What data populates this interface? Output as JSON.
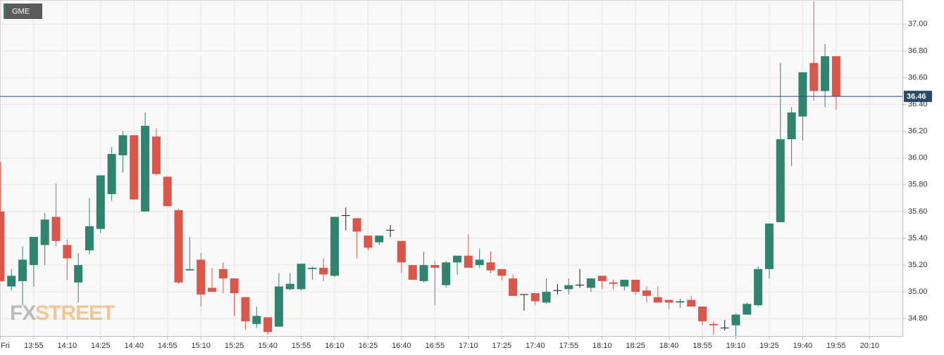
{
  "logo": {
    "fx": "FX",
    "street": "STREET"
  },
  "chart_data": {
    "type": "candlestick",
    "legend": "GME",
    "categories": [
      "Fri",
      null,
      null,
      "13:55",
      null,
      null,
      "14:10",
      null,
      null,
      "14:25",
      null,
      null,
      "14:40",
      null,
      null,
      "14:55",
      null,
      null,
      "15:10",
      null,
      null,
      "15:25",
      null,
      null,
      "15:40",
      null,
      null,
      "15:55",
      null,
      null,
      "16:10",
      null,
      null,
      "16:25",
      null,
      null,
      "16:40",
      null,
      null,
      "16:55",
      null,
      null,
      "17:10",
      null,
      null,
      "17:25",
      null,
      null,
      "17:40",
      null,
      null,
      "17:55",
      null,
      null,
      "18:10",
      null,
      null,
      "18:25",
      null,
      null,
      "18:40",
      null,
      null,
      "18:55",
      null,
      null,
      "19:10",
      null,
      null,
      "19:25",
      null,
      null,
      "19:40",
      null,
      null,
      "19:55",
      null,
      null,
      "20:10"
    ],
    "series": [
      {
        "name": "GME",
        "up_color": "#2f8470",
        "down_color": "#d9574a",
        "flat_color": "#1a1a1a",
        "open": [
          35.6,
          35.04,
          35.08,
          35.2,
          35.35,
          35.56,
          35.35,
          35.07,
          35.31,
          35.47,
          35.73,
          36.02,
          36.17,
          35.6,
          36.16,
          35.86,
          35.61,
          35.16,
          35.24,
          35.03,
          35.17,
          35.1,
          34.96,
          34.76,
          34.81,
          34.74,
          35.02,
          35.02,
          35.17,
          35.18,
          35.12,
          35.57,
          35.55,
          35.42,
          35.37,
          35.46,
          35.38,
          35.2,
          35.08,
          35.2,
          35.05,
          35.22,
          35.27,
          35.2,
          35.22,
          35.17,
          35.1,
          34.98,
          34.99,
          34.92,
          35.01,
          35.02,
          35.05,
          35.03,
          35.12,
          35.07,
          35.04,
          35.09,
          35.01,
          34.96,
          34.94,
          34.92,
          34.94,
          34.89,
          34.76,
          34.73,
          34.75,
          34.83,
          34.9,
          35.17,
          35.52,
          36.14,
          36.31,
          36.71,
          36.5,
          36.76,
          null,
          null,
          null
        ],
        "high": [
          35.97,
          35.17,
          35.34,
          35.41,
          35.59,
          35.81,
          35.39,
          35.29,
          35.7,
          35.87,
          36.08,
          36.2,
          36.17,
          36.34,
          36.22,
          35.86,
          35.62,
          35.41,
          35.29,
          35.18,
          35.22,
          35.1,
          34.96,
          34.89,
          34.81,
          35.14,
          35.14,
          35.21,
          35.19,
          35.25,
          35.56,
          35.63,
          35.55,
          35.42,
          35.42,
          35.5,
          35.38,
          35.2,
          35.3,
          35.23,
          35.23,
          35.27,
          35.43,
          35.32,
          35.3,
          35.17,
          35.13,
          34.98,
          34.99,
          35.1,
          35.06,
          35.1,
          35.17,
          35.1,
          35.12,
          35.09,
          35.09,
          35.09,
          35.04,
          35.04,
          34.94,
          34.95,
          34.97,
          34.89,
          34.78,
          34.79,
          34.84,
          34.92,
          35.19,
          35.51,
          36.71,
          36.38,
          36.64,
          37.17,
          36.85,
          36.76,
          null,
          null,
          null
        ],
        "low": [
          35.08,
          35.01,
          34.9,
          35.04,
          35.2,
          35.34,
          35.09,
          34.92,
          35.28,
          35.44,
          35.68,
          35.89,
          35.69,
          35.6,
          35.87,
          35.64,
          35.06,
          35.16,
          34.89,
          35.0,
          34.99,
          34.82,
          34.72,
          34.73,
          34.68,
          34.74,
          35.01,
          35.01,
          35.09,
          35.08,
          35.11,
          35.46,
          35.25,
          35.31,
          35.35,
          35.41,
          35.14,
          35.09,
          35.07,
          34.9,
          35.03,
          35.13,
          35.18,
          35.18,
          35.14,
          35.09,
          34.97,
          34.86,
          34.9,
          34.91,
          34.98,
          34.98,
          35.03,
          35.0,
          35.02,
          35.02,
          35.01,
          34.98,
          34.92,
          34.92,
          34.87,
          34.88,
          34.89,
          34.75,
          34.68,
          34.71,
          34.67,
          34.83,
          34.89,
          35.1,
          35.52,
          35.94,
          36.13,
          36.43,
          36.38,
          36.36,
          null,
          null,
          null
        ],
        "close": [
          35.08,
          35.12,
          35.24,
          35.41,
          35.54,
          35.38,
          35.25,
          35.2,
          35.49,
          35.87,
          36.03,
          36.17,
          35.69,
          36.24,
          35.88,
          35.64,
          35.07,
          35.17,
          34.98,
          35.0,
          35.1,
          34.99,
          34.78,
          34.82,
          34.7,
          35.04,
          35.06,
          35.21,
          35.18,
          35.13,
          35.56,
          35.57,
          35.45,
          35.33,
          35.42,
          35.46,
          35.22,
          35.09,
          35.2,
          35.18,
          35.22,
          35.27,
          35.18,
          35.24,
          35.16,
          35.12,
          34.97,
          34.98,
          34.93,
          35.0,
          35.01,
          35.05,
          35.05,
          35.1,
          35.08,
          35.06,
          35.09,
          35.0,
          34.97,
          34.92,
          34.92,
          34.93,
          34.89,
          34.78,
          34.75,
          34.73,
          34.83,
          34.91,
          35.17,
          35.51,
          36.14,
          36.34,
          36.64,
          36.5,
          36.76,
          36.46,
          null,
          null,
          null
        ]
      }
    ],
    "last_price": 36.46,
    "last_price_color": "#2a4a6b",
    "ylim": [
      34.67,
      37.18
    ],
    "yticks": [
      {
        "value": 34.8,
        "label": "34.80"
      },
      {
        "value": 35,
        "label": "35.00"
      },
      {
        "value": 35.2,
        "label": "35.20"
      },
      {
        "value": 35.4,
        "label": "35.40"
      },
      {
        "value": 35.6,
        "label": "35.60"
      },
      {
        "value": 35.8,
        "label": "35.80"
      },
      {
        "value": 36,
        "label": "36.00"
      },
      {
        "value": 36.2,
        "label": "36.20"
      },
      {
        "value": 36.4,
        "label": "36.40"
      },
      {
        "value": 36.6,
        "label": "36.60"
      },
      {
        "value": 36.8,
        "label": "36.80"
      },
      {
        "value": 37,
        "label": "37.00"
      }
    ],
    "grid": true
  }
}
